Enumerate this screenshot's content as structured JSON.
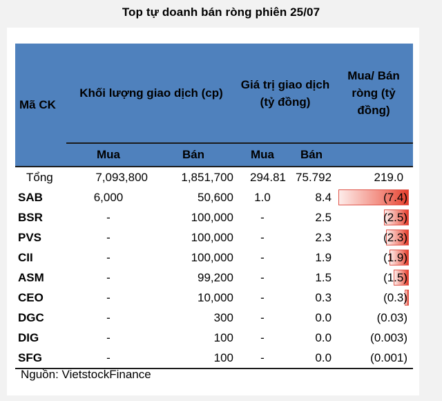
{
  "title": "Top tự doanh bán ròng phiên 25/07",
  "headers": {
    "ma_ck": "Mã CK",
    "volume": "Khối lượng giao dịch (cp)",
    "value": "Giá trị giao dịch (tỷ đồng)",
    "net": "Mua/ Bán ròng (tỷ đồng)",
    "buy": "Mua",
    "sell": "Bán",
    "buy2": "Mua",
    "sell2": "Bán"
  },
  "total": {
    "code": "Tổng",
    "vol_buy": "7,093,800",
    "vol_sell": "1,851,700",
    "val_buy": "294.81",
    "val_sell": "75.792",
    "net": "219.0"
  },
  "rows": [
    {
      "code": "SAB",
      "vol_buy": "6,000",
      "vol_sell": "50,600",
      "val_buy": "1.0",
      "val_sell": "8.4",
      "net": "(7.4)",
      "net_value": -7.4
    },
    {
      "code": "BSR",
      "vol_buy": "-",
      "vol_sell": "100,000",
      "val_buy": "-",
      "val_sell": "2.5",
      "net": "(2.5)",
      "net_value": -2.5
    },
    {
      "code": "PVS",
      "vol_buy": "-",
      "vol_sell": "100,000",
      "val_buy": "-",
      "val_sell": "2.3",
      "net": "(2.3)",
      "net_value": -2.3
    },
    {
      "code": "CII",
      "vol_buy": "-",
      "vol_sell": "100,000",
      "val_buy": "-",
      "val_sell": "1.9",
      "net": "(1.9)",
      "net_value": -1.9
    },
    {
      "code": "ASM",
      "vol_buy": "-",
      "vol_sell": "99,200",
      "val_buy": "-",
      "val_sell": "1.5",
      "net": "(1.5)",
      "net_value": -1.5
    },
    {
      "code": "CEO",
      "vol_buy": "-",
      "vol_sell": "10,000",
      "val_buy": "-",
      "val_sell": "0.3",
      "net": "(0.3)",
      "net_value": -0.3
    },
    {
      "code": "DGC",
      "vol_buy": "-",
      "vol_sell": "300",
      "val_buy": "-",
      "val_sell": "0.0",
      "net": "(0.03)",
      "net_value": -0.03
    },
    {
      "code": "DIG",
      "vol_buy": "-",
      "vol_sell": "100",
      "val_buy": "-",
      "val_sell": "0.0",
      "net": "(0.003)",
      "net_value": -0.003
    },
    {
      "code": "SFG",
      "vol_buy": "-",
      "vol_sell": "100",
      "val_buy": "-",
      "val_sell": "0.0",
      "net": "(0.001)",
      "net_value": -0.001
    }
  ],
  "source": "Nguồn: VietstockFinance"
}
